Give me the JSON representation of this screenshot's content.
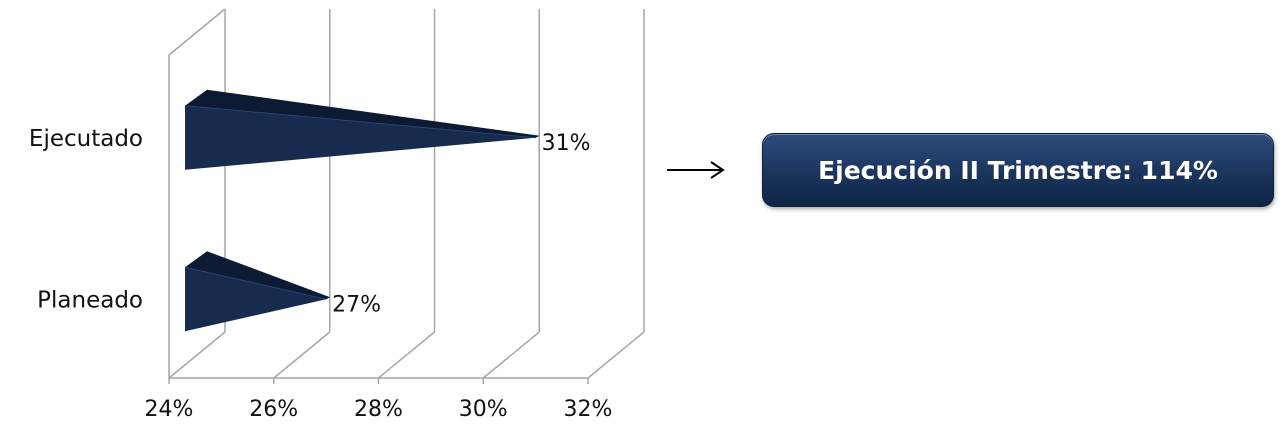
{
  "chart_data": {
    "type": "bar",
    "orientation": "horizontal",
    "style": "3d-pyramid",
    "categories": [
      "Planeado",
      "Ejecutado"
    ],
    "values": [
      27,
      31
    ],
    "data_labels": [
      "27%",
      "31%"
    ],
    "xlim": [
      24,
      32
    ],
    "x_ticks": [
      24,
      26,
      28,
      30,
      32
    ],
    "x_tick_labels": [
      "24%",
      "26%",
      "28%",
      "30%",
      "32%"
    ],
    "grid": true,
    "bar_color": "#162b4d"
  },
  "callout": {
    "text": "Ejecución II Trimestre: 114%",
    "color": "#1c365f"
  },
  "arrow_icon": "right-arrow-icon"
}
